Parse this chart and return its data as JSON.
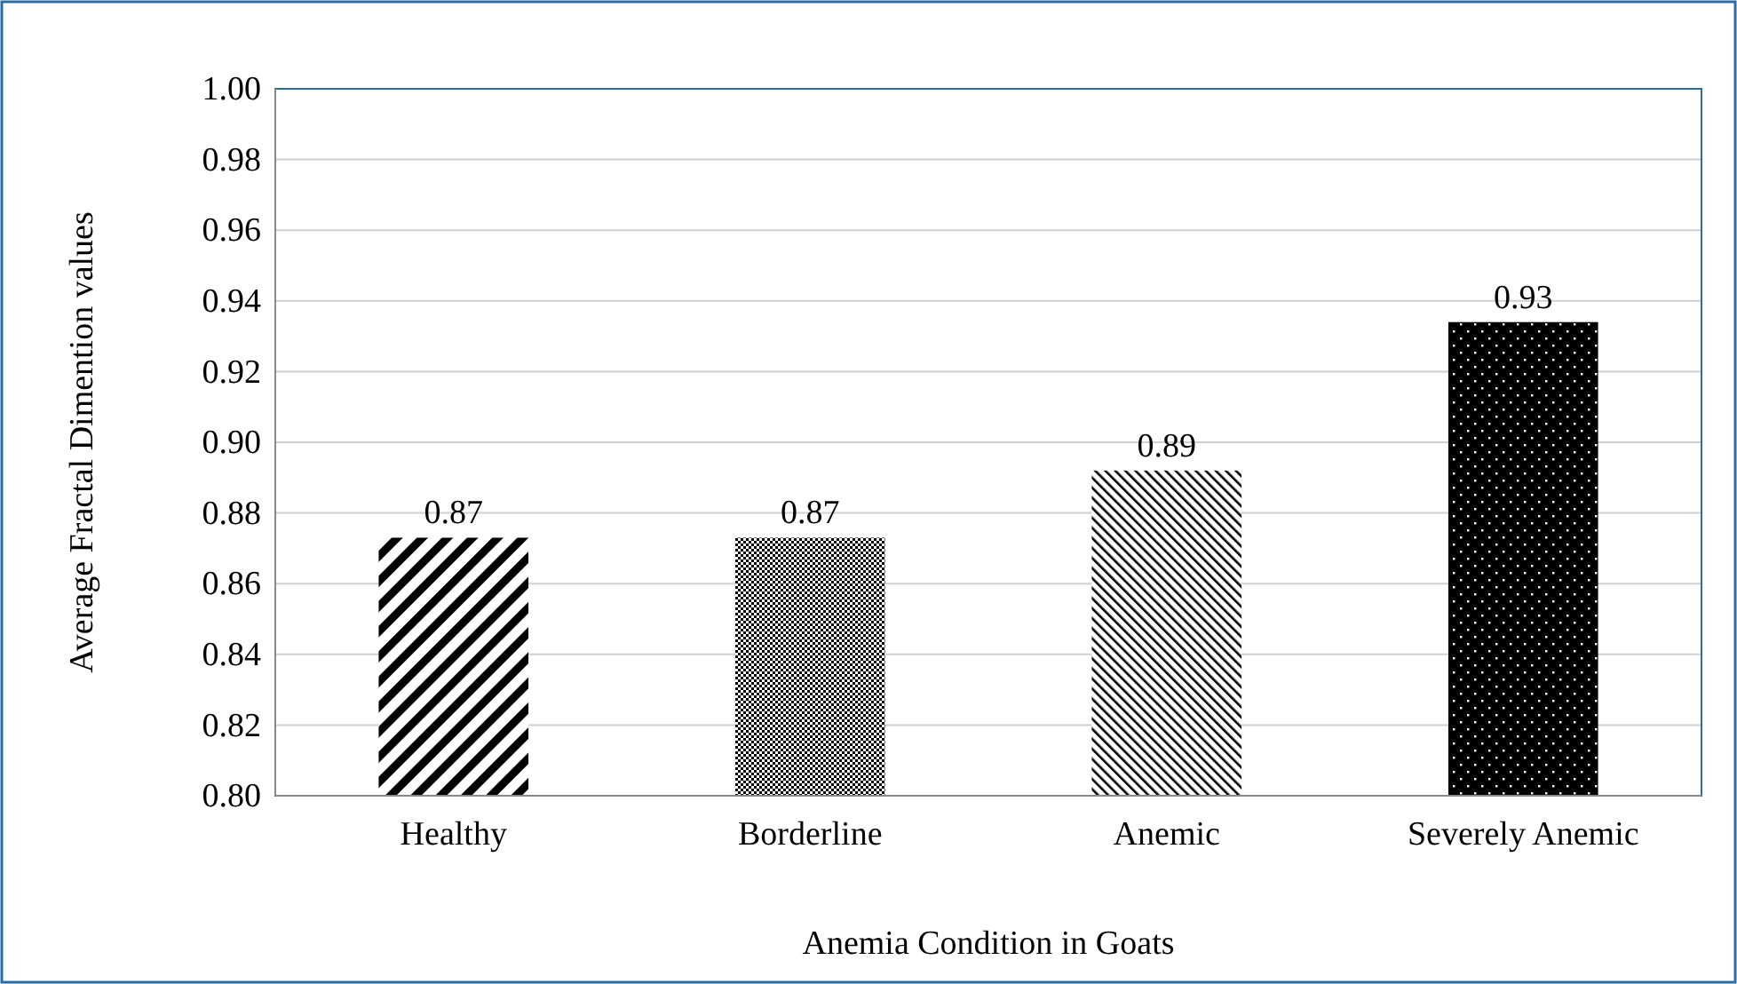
{
  "chart_data": {
    "type": "bar",
    "xlabel": "Anemia Condition in Goats",
    "ylabel": "Average Fractal Dimention values",
    "categories": [
      "Healthy",
      "Borderline",
      "Anemic",
      "Severely Anemic"
    ],
    "values": [
      0.873,
      0.873,
      0.892,
      0.934
    ],
    "value_labels": [
      "0.87",
      "0.87",
      "0.89",
      "0.93"
    ],
    "colors": [
      "#000000",
      "#000000",
      "#000000",
      "#000000"
    ],
    "ylim": [
      0.8,
      1.0
    ],
    "yticks": [
      {
        "value": 0.8,
        "label": "0.80"
      },
      {
        "value": 0.82,
        "label": "0.82"
      },
      {
        "value": 0.84,
        "label": "0.84"
      },
      {
        "value": 0.86,
        "label": "0.86"
      },
      {
        "value": 0.88,
        "label": "0.88"
      },
      {
        "value": 0.9,
        "label": "0.90"
      },
      {
        "value": 0.92,
        "label": "0.92"
      },
      {
        "value": 0.94,
        "label": "0.94"
      },
      {
        "value": 0.96,
        "label": "0.96"
      },
      {
        "value": 0.98,
        "label": "0.98"
      },
      {
        "value": 1.0,
        "label": "1.00"
      }
    ],
    "grid": "y"
  }
}
